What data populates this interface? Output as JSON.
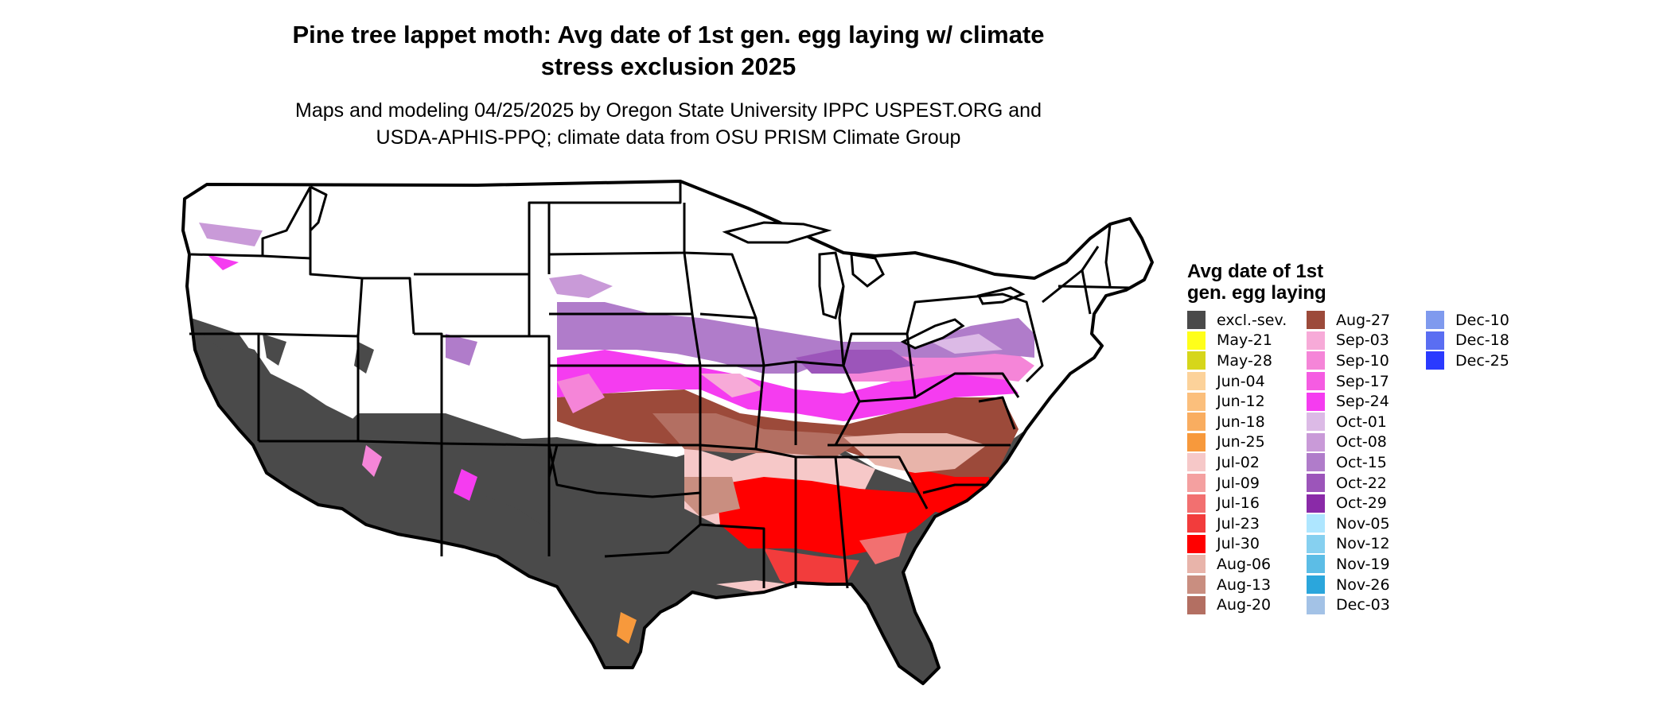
{
  "title": [
    "Pine tree lappet moth: Avg date of 1st gen. egg laying w/ climate",
    "stress exclusion 2025"
  ],
  "subtitle": [
    "Maps and modeling 04/25/2025 by Oregon State University IPPC USPEST.ORG and",
    "USDA-APHIS-PPQ; climate data from OSU PRISM Climate Group"
  ],
  "legend": {
    "title": [
      "Avg date of 1st",
      "gen. egg laying"
    ],
    "columns": [
      [
        {
          "label": "excl.-sev.",
          "color": "#4a4a4a"
        },
        {
          "label": "May-21",
          "color": "#ffff1a"
        },
        {
          "label": "May-28",
          "color": "#d6d61a"
        },
        {
          "label": "Jun-04",
          "color": "#fcd29a"
        },
        {
          "label": "Jun-12",
          "color": "#fbbf7c"
        },
        {
          "label": "Jun-18",
          "color": "#f9ad60"
        },
        {
          "label": "Jun-25",
          "color": "#f7993c"
        },
        {
          "label": "Jul-02",
          "color": "#f6c8c8"
        },
        {
          "label": "Jul-09",
          "color": "#f4a0a0"
        },
        {
          "label": "Jul-16",
          "color": "#f27070"
        },
        {
          "label": "Jul-23",
          "color": "#f23c3c"
        },
        {
          "label": "Jul-30",
          "color": "#ff0000"
        },
        {
          "label": "Aug-06",
          "color": "#e8b4aa"
        },
        {
          "label": "Aug-13",
          "color": "#c98e80"
        },
        {
          "label": "Aug-20",
          "color": "#b36f62"
        }
      ],
      [
        {
          "label": "Aug-27",
          "color": "#9c4a3a"
        },
        {
          "label": "Sep-03",
          "color": "#f7aad8"
        },
        {
          "label": "Sep-10",
          "color": "#f585d8"
        },
        {
          "label": "Sep-17",
          "color": "#f55ce2"
        },
        {
          "label": "Sep-24",
          "color": "#f53cf0"
        },
        {
          "label": "Oct-01",
          "color": "#dcbae6"
        },
        {
          "label": "Oct-08",
          "color": "#c99ad8"
        },
        {
          "label": "Oct-15",
          "color": "#b07cca"
        },
        {
          "label": "Oct-22",
          "color": "#9c55ba"
        },
        {
          "label": "Oct-29",
          "color": "#8a2aa8"
        },
        {
          "label": "Nov-05",
          "color": "#aee6ff"
        },
        {
          "label": "Nov-12",
          "color": "#86d0f0"
        },
        {
          "label": "Nov-19",
          "color": "#5cbde6"
        },
        {
          "label": "Nov-26",
          "color": "#2ba6dc"
        },
        {
          "label": "Dec-03",
          "color": "#a3c2e6"
        }
      ],
      [
        {
          "label": "Dec-10",
          "color": "#7f9aee"
        },
        {
          "label": "Dec-18",
          "color": "#5a6ef2"
        },
        {
          "label": "Dec-25",
          "color": "#2a3aff"
        }
      ]
    ]
  }
}
